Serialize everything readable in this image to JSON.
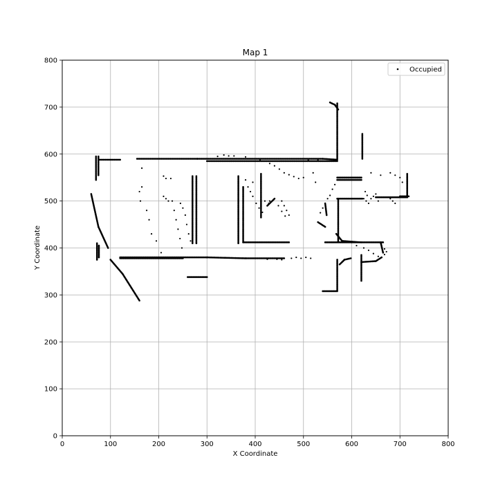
{
  "chart_data": {
    "type": "scatter",
    "title": "Map 1",
    "xlabel": "X Coordinate",
    "ylabel": "Y Coordinate",
    "xlim": [
      0,
      800
    ],
    "ylim": [
      0,
      800
    ],
    "xticks": [
      0,
      100,
      200,
      300,
      400,
      500,
      600,
      700,
      800
    ],
    "yticks": [
      0,
      100,
      200,
      300,
      400,
      500,
      600,
      700,
      800
    ],
    "grid": true,
    "legend": {
      "position": "top-right",
      "entries": [
        "Occupied"
      ]
    },
    "marker_color": "#000000",
    "series": [
      {
        "name": "Occupied",
        "segments": [
          [
            [
              70,
              595
            ],
            [
              70,
              545
            ]
          ],
          [
            [
              75,
              595
            ],
            [
              75,
              555
            ]
          ],
          [
            [
              72,
              410
            ],
            [
              72,
              375
            ]
          ],
          [
            [
              76,
              405
            ],
            [
              76,
              380
            ]
          ],
          [
            [
              60,
              515
            ],
            [
              75,
              445
            ],
            [
              95,
              400
            ]
          ],
          [
            [
              100,
              375
            ],
            [
              125,
              345
            ],
            [
              160,
              288
            ]
          ],
          [
            [
              78,
              588
            ],
            [
              120,
              588
            ]
          ],
          [
            [
              155,
              590
            ],
            [
              280,
              590
            ],
            [
              540,
              590
            ],
            [
              570,
              588
            ]
          ],
          [
            [
              300,
              585
            ],
            [
              570,
              585
            ]
          ],
          [
            [
              120,
              380
            ],
            [
              300,
              380
            ],
            [
              380,
              378
            ],
            [
              460,
              378
            ]
          ],
          [
            [
              120,
              378
            ],
            [
              250,
              378
            ]
          ],
          [
            [
              260,
              338
            ],
            [
              300,
              338
            ]
          ],
          [
            [
              270,
              553
            ],
            [
              270,
              410
            ]
          ],
          [
            [
              278,
              553
            ],
            [
              278,
              410
            ]
          ],
          [
            [
              365,
              553
            ],
            [
              365,
              410
            ]
          ],
          [
            [
              375,
              530
            ],
            [
              375,
              412
            ],
            [
              470,
              412
            ]
          ],
          [
            [
              412,
              558
            ],
            [
              412,
              465
            ]
          ],
          [
            [
              545,
              412
            ],
            [
              600,
              412
            ],
            [
              665,
              412
            ]
          ],
          [
            [
              570,
              708
            ],
            [
              570,
              590
            ]
          ],
          [
            [
              555,
              710
            ],
            [
              565,
              705
            ],
            [
              572,
              695
            ]
          ],
          [
            [
              622,
              643
            ],
            [
              622,
              590
            ]
          ],
          [
            [
              570,
              550
            ],
            [
              620,
              550
            ]
          ],
          [
            [
              570,
              545
            ],
            [
              620,
              545
            ]
          ],
          [
            [
              570,
              505
            ],
            [
              622,
              505
            ]
          ],
          [
            [
              572,
              505
            ],
            [
              572,
              415
            ]
          ],
          [
            [
              568,
              430
            ],
            [
              580,
              415
            ],
            [
              620,
              412
            ]
          ],
          [
            [
              570,
              375
            ],
            [
              570,
              310
            ]
          ],
          [
            [
              540,
              308
            ],
            [
              570,
              308
            ]
          ],
          [
            [
              575,
              365
            ],
            [
              585,
              375
            ],
            [
              598,
              378
            ]
          ],
          [
            [
              620,
              385
            ],
            [
              620,
              330
            ]
          ],
          [
            [
              660,
              412
            ],
            [
              665,
              390
            ]
          ],
          [
            [
              620,
              370
            ],
            [
              650,
              372
            ],
            [
              662,
              380
            ]
          ],
          [
            [
              715,
              558
            ],
            [
              715,
              508
            ]
          ],
          [
            [
              700,
              510
            ],
            [
              718,
              510
            ]
          ],
          [
            [
              650,
              508
            ],
            [
              715,
              508
            ]
          ],
          [
            [
              530,
              455
            ],
            [
              545,
              445
            ]
          ],
          [
            [
              545,
              495
            ],
            [
              548,
              470
            ]
          ],
          [
            [
              440,
              505
            ],
            [
              425,
              490
            ]
          ]
        ],
        "points": [
          [
            165,
            570
          ],
          [
            165,
            530
          ],
          [
            162,
            500
          ],
          [
            160,
            520
          ],
          [
            175,
            480
          ],
          [
            180,
            460
          ],
          [
            185,
            430
          ],
          [
            195,
            415
          ],
          [
            205,
            390
          ],
          [
            210,
            510
          ],
          [
            215,
            505
          ],
          [
            220,
            500
          ],
          [
            210,
            553
          ],
          [
            215,
            548
          ],
          [
            225,
            548
          ],
          [
            228,
            500
          ],
          [
            232,
            480
          ],
          [
            236,
            460
          ],
          [
            240,
            440
          ],
          [
            244,
            420
          ],
          [
            248,
            400
          ],
          [
            255,
            470
          ],
          [
            258,
            450
          ],
          [
            262,
            430
          ],
          [
            266,
            415
          ],
          [
            245,
            495
          ],
          [
            250,
            485
          ],
          [
            322,
            595
          ],
          [
            335,
            598
          ],
          [
            345,
            596
          ],
          [
            356,
            596
          ],
          [
            380,
            594
          ],
          [
            392,
            590
          ],
          [
            410,
            588
          ],
          [
            420,
            590
          ],
          [
            430,
            580
          ],
          [
            440,
            575
          ],
          [
            450,
            568
          ],
          [
            460,
            560
          ],
          [
            470,
            556
          ],
          [
            480,
            552
          ],
          [
            490,
            548
          ],
          [
            500,
            550
          ],
          [
            520,
            560
          ],
          [
            525,
            540
          ],
          [
            395,
            510
          ],
          [
            402,
            495
          ],
          [
            408,
            485
          ],
          [
            415,
            476
          ],
          [
            430,
            500
          ],
          [
            455,
            500
          ],
          [
            460,
            490
          ],
          [
            465,
            480
          ],
          [
            470,
            470
          ],
          [
            380,
            545
          ],
          [
            385,
            530
          ],
          [
            390,
            520
          ],
          [
            395,
            540
          ],
          [
            420,
            500
          ],
          [
            428,
            495
          ],
          [
            448,
            490
          ],
          [
            455,
            478
          ],
          [
            462,
            468
          ],
          [
            535,
            475
          ],
          [
            540,
            485
          ],
          [
            550,
            505
          ],
          [
            555,
            512
          ],
          [
            560,
            525
          ],
          [
            565,
            535
          ],
          [
            500,
            585
          ],
          [
            510,
            587
          ],
          [
            530,
            588
          ],
          [
            600,
            412
          ],
          [
            610,
            405
          ],
          [
            625,
            400
          ],
          [
            635,
            395
          ],
          [
            645,
            388
          ],
          [
            655,
            382
          ],
          [
            668,
            398
          ],
          [
            672,
            392
          ],
          [
            668,
            386
          ],
          [
            640,
            560
          ],
          [
            660,
            555
          ],
          [
            680,
            560
          ],
          [
            690,
            555
          ],
          [
            700,
            550
          ],
          [
            705,
            540
          ],
          [
            680,
            505
          ],
          [
            685,
            500
          ],
          [
            690,
            495
          ],
          [
            475,
            378
          ],
          [
            485,
            380
          ],
          [
            495,
            378
          ],
          [
            505,
            380
          ],
          [
            515,
            378
          ],
          [
            455,
            375
          ],
          [
            445,
            376
          ],
          [
            435,
            378
          ],
          [
            425,
            376
          ],
          [
            630,
            500
          ],
          [
            640,
            505
          ],
          [
            645,
            510
          ],
          [
            650,
            515
          ],
          [
            655,
            500
          ],
          [
            635,
            495
          ],
          [
            628,
            520
          ],
          [
            632,
            512
          ],
          [
            625,
            505
          ]
        ]
      }
    ]
  }
}
